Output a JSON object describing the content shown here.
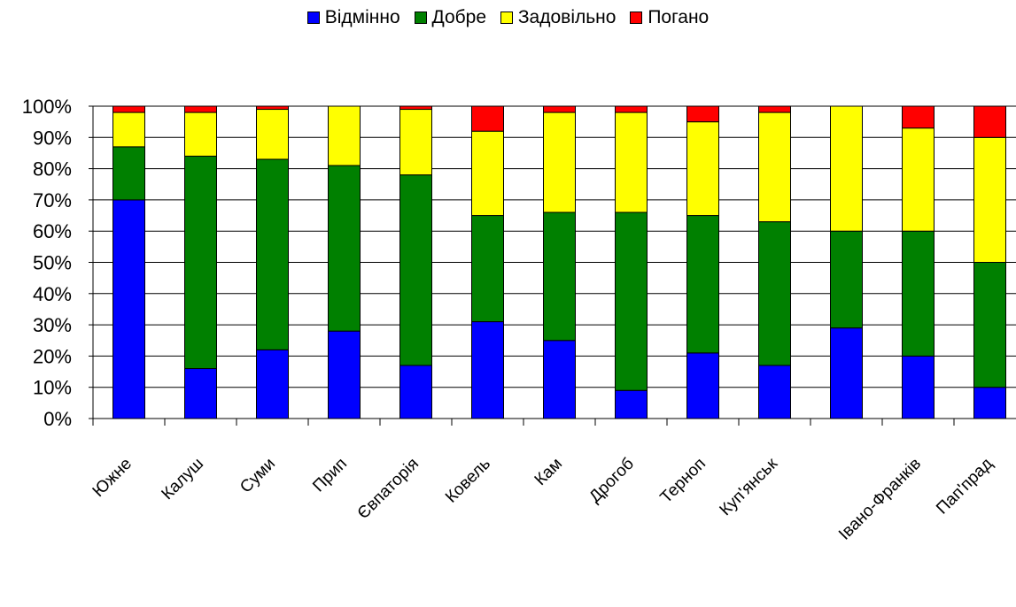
{
  "colors": {
    "excellent": "#0000ff",
    "good": "#008000",
    "satisfactory": "#ffff00",
    "poor": "#ff0000"
  },
  "chart_data": {
    "type": "bar",
    "stacked": true,
    "percent_stacked": true,
    "title": "",
    "xlabel": "",
    "ylabel": "",
    "ylim": [
      0,
      100
    ],
    "y_tick_labels": [
      "0%",
      "10%",
      "20%",
      "30%",
      "40%",
      "50%",
      "60%",
      "70%",
      "80%",
      "90%",
      "100%"
    ],
    "grid": "horizontal",
    "legend_position": "top",
    "categories": [
      "Южне",
      "Калуш",
      "Суми",
      "Прип",
      "Євпаторія",
      "Ковель",
      "Кам",
      "Дрогоб",
      "Терноп",
      "Куп'янськ",
      "",
      "Івано-Франків",
      "Пап'прад"
    ],
    "series": [
      {
        "name": "Відмінно",
        "color": "#0000ff",
        "values": [
          70,
          16,
          22,
          28,
          17,
          31,
          25,
          9,
          21,
          17,
          29,
          20,
          10
        ]
      },
      {
        "name": "Добре",
        "color": "#008000",
        "values": [
          17,
          68,
          61,
          53,
          61,
          34,
          41,
          57,
          44,
          46,
          31,
          40,
          40
        ]
      },
      {
        "name": "Задовільно",
        "color": "#ffff00",
        "values": [
          11,
          14,
          16,
          19,
          21,
          27,
          32,
          32,
          30,
          35,
          40,
          33,
          40
        ]
      },
      {
        "name": "Погано",
        "color": "#ff0000",
        "values": [
          2,
          2,
          1,
          0,
          1,
          8,
          2,
          2,
          5,
          2,
          0,
          7,
          10
        ]
      }
    ]
  }
}
